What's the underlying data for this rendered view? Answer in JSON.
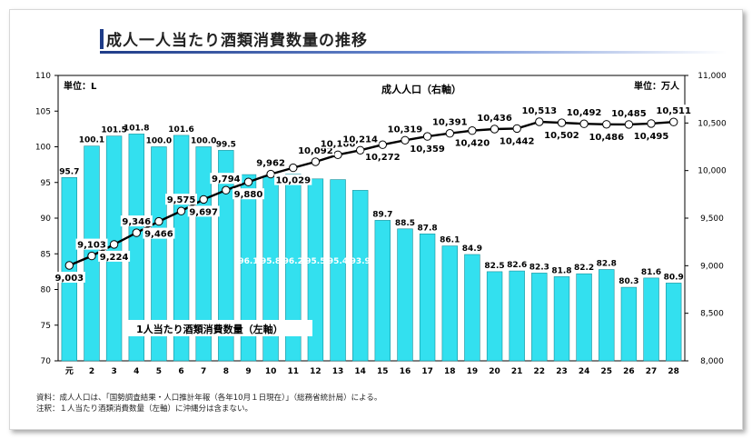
{
  "title": "成人一人当たり酒類消費数量の推移",
  "chart_data": {
    "type": "bar",
    "title": "成人一人当たり酒類消費数量の推移",
    "categories": [
      "元",
      "2",
      "3",
      "4",
      "5",
      "6",
      "7",
      "8",
      "9",
      "10",
      "11",
      "12",
      "13",
      "14",
      "15",
      "16",
      "17",
      "18",
      "19",
      "20",
      "21",
      "22",
      "23",
      "24",
      "25",
      "26",
      "27",
      "28"
    ],
    "y_left": {
      "unit_label": "単位：L",
      "ylim": [
        70,
        110
      ],
      "ticks": [
        70,
        75,
        80,
        85,
        90,
        95,
        100,
        105,
        110
      ]
    },
    "y_right": {
      "unit_label": "単位：万人",
      "ylim": [
        8000,
        11000
      ],
      "ticks": [
        "8,000",
        "8,500",
        "9,000",
        "9,500",
        "10,000",
        "10,500",
        "11,000"
      ]
    },
    "series": [
      {
        "name": "1人当たり酒類消費数量（左軸）",
        "kind": "bar",
        "color": "#33e0ef",
        "values": [
          95.7,
          100.1,
          101.5,
          101.8,
          100.0,
          101.6,
          100.0,
          99.5,
          96.1,
          95.8,
          96.2,
          95.5,
          95.4,
          93.9,
          89.7,
          88.5,
          87.8,
          86.1,
          84.9,
          82.5,
          82.6,
          82.3,
          81.8,
          82.2,
          82.8,
          80.3,
          81.6,
          80.9
        ]
      },
      {
        "name": "成人人口（右軸）",
        "kind": "line",
        "color": "#000000",
        "values": [
          9003,
          9103,
          9224,
          9346,
          9466,
          9575,
          9697,
          9794,
          9880,
          9962,
          10029,
          10092,
          10166,
          10214,
          10272,
          10319,
          10359,
          10391,
          10420,
          10436,
          10442,
          10513,
          10502,
          10492,
          10486,
          10485,
          10495,
          10511
        ]
      }
    ],
    "bar_labels": [
      "95.7",
      "100.1",
      "101.5",
      "101.8",
      "100.0",
      "101.6",
      "100.0",
      "99.5",
      "96.1",
      "95.8",
      "96.2",
      "95.5",
      "95.4",
      "93.9",
      "89.7",
      "88.5",
      "87.8",
      "86.1",
      "84.9",
      "82.5",
      "82.6",
      "82.3",
      "81.8",
      "82.2",
      "82.8",
      "80.3",
      "81.6",
      "80.9"
    ],
    "line_labels": [
      "9,003",
      "9,103",
      "9,224",
      "9,346",
      "9,466",
      "9,575",
      "9,697",
      "9,794",
      "9,880",
      "9,962",
      "10,029",
      "10,092",
      "10,166",
      "10,214",
      "10,272",
      "10,319",
      "10,359",
      "10,391",
      "10,420",
      "10,436",
      "10,442",
      "10,513",
      "10,502",
      "10,492",
      "10,486",
      "10,485",
      "10,495",
      "10,511"
    ],
    "grid": false,
    "legend": "none"
  },
  "notes": {
    "source": "資料：成人人口は、「国勢調査結果・人口推計年報（各年10月１日現在）」（総務省統計局）による。",
    "note": "注釈：１人当たり酒類消費数量（左軸）に沖縄分は含まない。"
  }
}
